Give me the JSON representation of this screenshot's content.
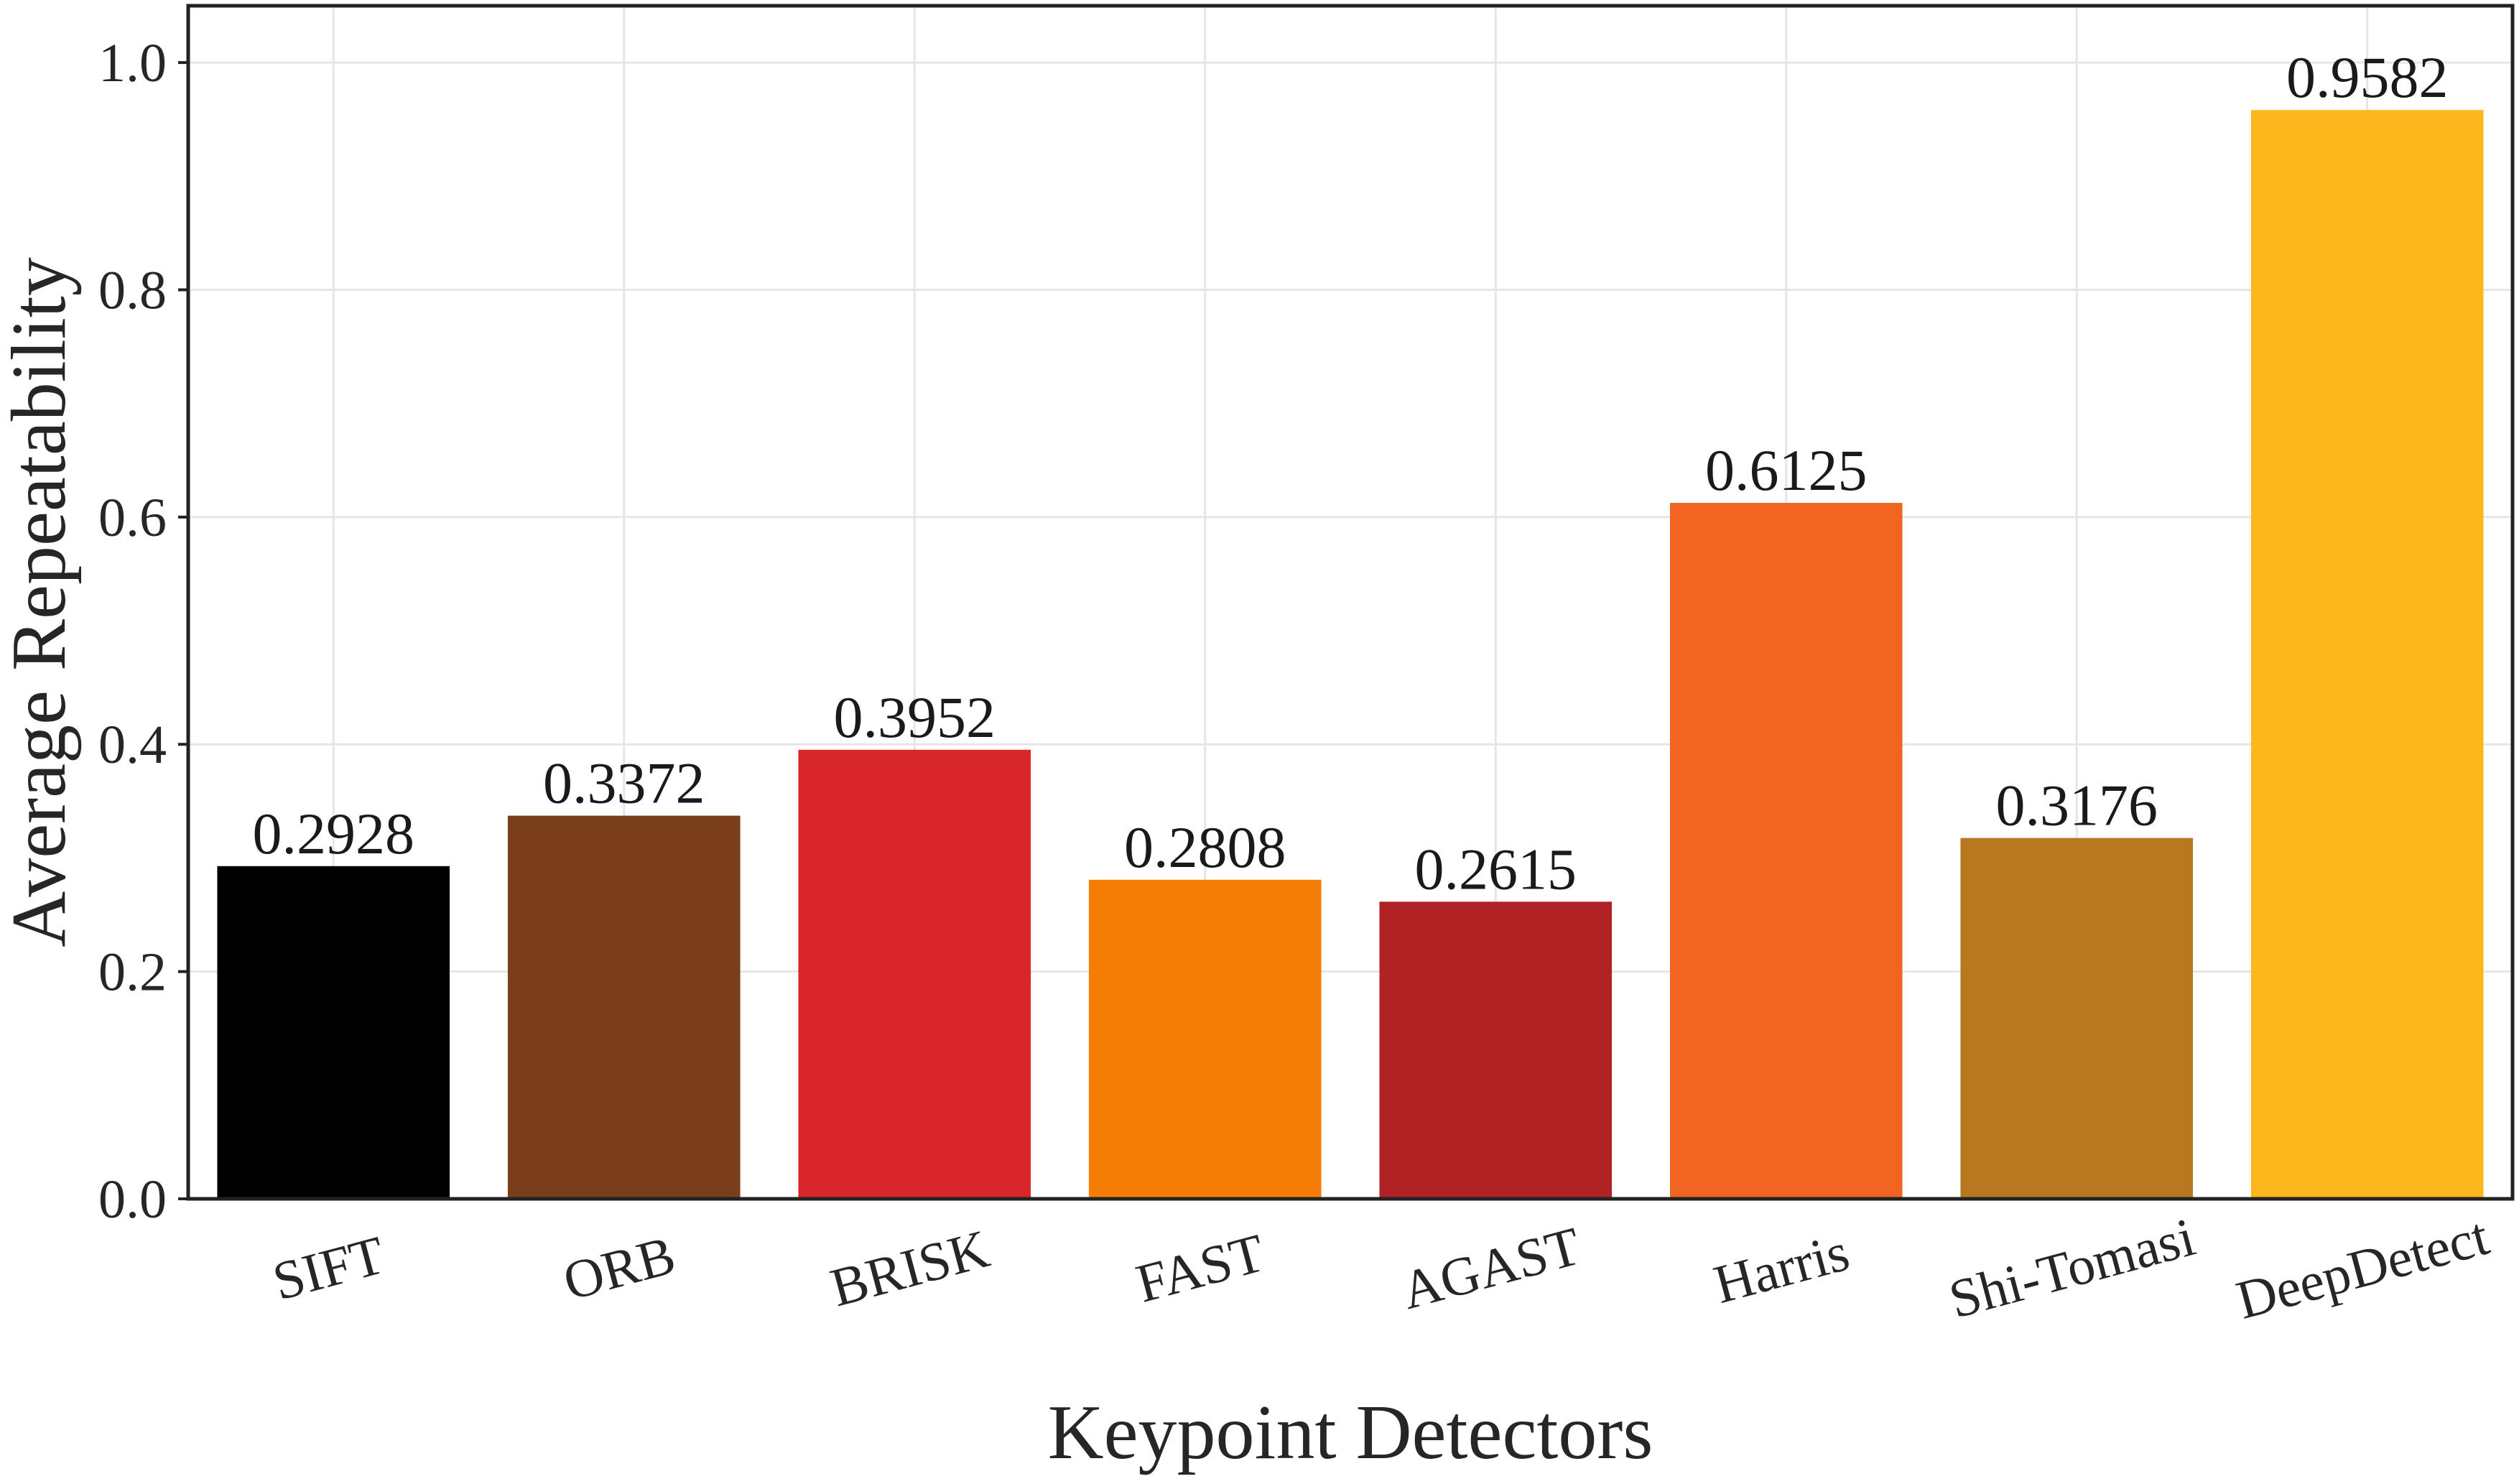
{
  "chart_data": {
    "type": "bar",
    "title": "",
    "xlabel": "Keypoint Detectors",
    "ylabel": "Average Repeatability",
    "categories": [
      "SIFT",
      "ORB",
      "BRISK",
      "FAST",
      "AGAST",
      "Harris",
      "Shi-Tomasi",
      "DeepDetect"
    ],
    "values": [
      0.2928,
      0.3372,
      0.3952,
      0.2808,
      0.2615,
      0.6125,
      0.3176,
      0.9582
    ],
    "value_labels": [
      "0.2928",
      "0.3372",
      "0.3952",
      "0.2808",
      "0.2615",
      "0.6125",
      "0.3176",
      "0.9582"
    ],
    "bar_colors": [
      "#000000",
      "#7a3f1a",
      "#d9262a",
      "#f57c05",
      "#b12225",
      "#f26422",
      "#b87820",
      "#fbb71b"
    ],
    "ylim": [
      0,
      1.05
    ],
    "yticks": [
      0.0,
      0.2,
      0.4,
      0.6,
      0.8,
      1.0
    ],
    "ytick_labels": [
      "0.0",
      "0.2",
      "0.4",
      "0.6",
      "0.8",
      "1.0"
    ],
    "grid": true,
    "legend": false
  }
}
